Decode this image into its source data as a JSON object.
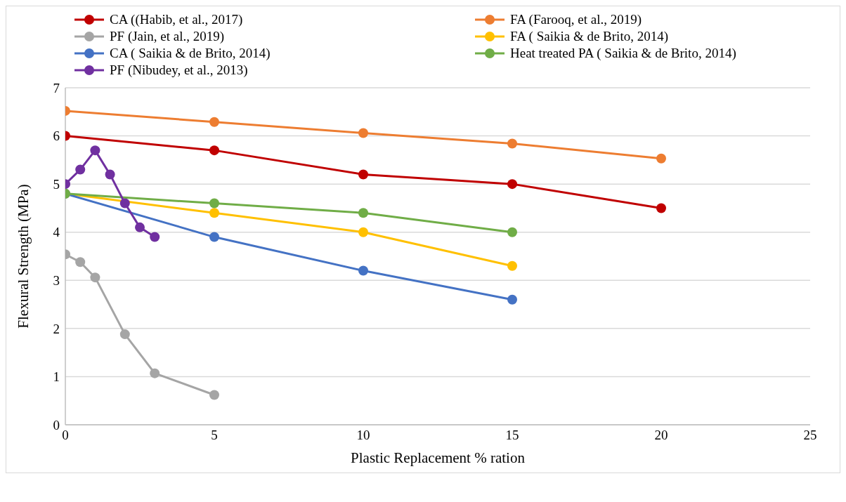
{
  "chart_data": {
    "type": "line",
    "xlabel": "Plastic Replacement % ration",
    "ylabel": "Flexural Strength (MPa)",
    "xlim": [
      0,
      25
    ],
    "xticks": [
      0,
      5,
      10,
      15,
      20,
      25
    ],
    "ylim": [
      0,
      7
    ],
    "yticks": [
      0,
      1,
      2,
      3,
      4,
      5,
      6,
      7
    ],
    "grid": "y",
    "legend": "top",
    "marker": "circle",
    "line_style": "solid",
    "series": [
      {
        "name": "CA ((Habib, et al., 2017)",
        "color": "#c00000",
        "x": [
          0,
          5,
          10,
          15,
          20
        ],
        "values": [
          6.0,
          5.7,
          5.2,
          5.0,
          4.5
        ]
      },
      {
        "name": "FA (Farooq, et al., 2019)",
        "color": "#ed7d31",
        "x": [
          0,
          5,
          10,
          15,
          20
        ],
        "values": [
          6.52,
          6.29,
          6.06,
          5.84,
          5.53
        ]
      },
      {
        "name": "PF (Jain, et al., 2019)",
        "color": "#a5a5a5",
        "x": [
          0,
          0.5,
          1,
          2,
          3,
          5
        ],
        "values": [
          3.54,
          3.38,
          3.06,
          1.88,
          1.07,
          0.62
        ]
      },
      {
        "name": "FA ( Saikia & de Brito, 2014)",
        "color": "#ffc000",
        "x": [
          0,
          5,
          10,
          15
        ],
        "values": [
          4.8,
          4.4,
          4.0,
          3.3
        ]
      },
      {
        "name": "CA ( Saikia & de Brito, 2014)",
        "color": "#4472c4",
        "x": [
          0,
          5,
          10,
          15
        ],
        "values": [
          4.8,
          3.9,
          3.2,
          2.6
        ]
      },
      {
        "name": "Heat treated PA ( Saikia & de Brito, 2014)",
        "color": "#70ad47",
        "x": [
          0,
          5,
          10,
          15
        ],
        "values": [
          4.8,
          4.6,
          4.4,
          4.0
        ]
      },
      {
        "name": "PF (Nibudey, et al., 2013)",
        "color": "#7030a0",
        "x": [
          0,
          0.5,
          1,
          1.5,
          2,
          2.5,
          3
        ],
        "values": [
          5.0,
          5.3,
          5.7,
          5.2,
          4.6,
          4.1,
          3.9
        ]
      }
    ]
  }
}
